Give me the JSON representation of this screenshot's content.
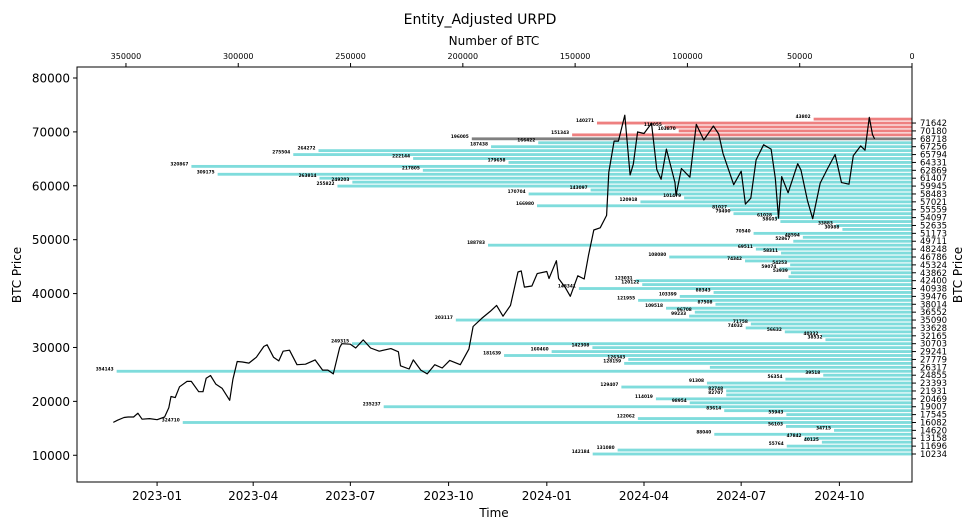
{
  "chart_data": {
    "type": "bar",
    "orientation": "horizontal",
    "title": "Entity_Adjusted URPD",
    "top_xlabel": "Number of BTC",
    "xlabel": "Time",
    "ylabel_left": "BTC Price",
    "ylabel_right": "BTC Price",
    "ylim": [
      5040,
      82040
    ],
    "btc_xlim": [
      371800,
      0
    ],
    "time_xlim": [
      "2022-10-18",
      "2024-12-08"
    ],
    "left_yticks": [
      10000,
      20000,
      30000,
      40000,
      50000,
      60000,
      70000,
      80000
    ],
    "top_xticks": [
      350000,
      300000,
      250000,
      200000,
      150000,
      100000,
      50000,
      0
    ],
    "time_ticks": [
      "2023-01",
      "2023-04",
      "2023-07",
      "2023-10",
      "2024-01",
      "2024-04",
      "2024-07",
      "2024-10"
    ],
    "right_yticks": [
      10234,
      11696,
      13158,
      14620,
      16082,
      17545,
      19007,
      20469,
      21931,
      23393,
      24855,
      26317,
      27779,
      29241,
      30703,
      32165,
      33628,
      35090,
      36552,
      38014,
      39476,
      40938,
      42400,
      43862,
      45324,
      46786,
      48248,
      49711,
      51173,
      52635,
      54097,
      55559,
      57021,
      58483,
      59945,
      61407,
      62869,
      64331,
      65794,
      67256,
      68718,
      70180,
      71642
    ],
    "bins": {
      "start_price": 10234,
      "step": 731.035,
      "current_bin_index": 80,
      "colors": {
        "below": "#7fdcdc",
        "current": "#808080",
        "above": "#ee8080"
      },
      "btc": [
        142184,
        131080,
        55764,
        40125,
        47842,
        88040,
        34715,
        56103,
        324710,
        122062,
        55943,
        83614,
        235237,
        98954,
        114019,
        82707,
        82748,
        129407,
        91308,
        56354,
        39518,
        354143,
        90000,
        128159,
        126343,
        181639,
        160460,
        142308,
        249315,
        38532,
        40332,
        56632,
        74032,
        71758,
        203117,
        99233,
        96708,
        109518,
        87508,
        121955,
        103399,
        88343,
        148341,
        120122,
        123031,
        55000,
        53939,
        59074,
        54253,
        74342,
        108080,
        58311,
        69511,
        188783,
        52867,
        48594,
        70540,
        30988,
        33883,
        58603,
        61028,
        79490,
        81027,
        166980,
        120918,
        101479,
        170704,
        143097,
        255822,
        249203,
        263814,
        309175,
        217805,
        320867,
        179658,
        222144,
        275504,
        264272,
        187438,
        166422,
        196005,
        151343,
        103870,
        110055,
        140271,
        43802
      ],
      "labels": [
        "142184",
        "131080",
        "55764",
        "40125",
        "47842",
        "88040",
        "34715",
        "56103",
        "324710",
        "122062",
        "55943",
        "83614",
        "235237",
        "98954",
        "114019",
        "82707",
        "82748",
        "129407",
        "91308",
        "56354",
        "39518",
        "354143",
        "",
        "128159",
        "126343",
        "181639",
        "160460",
        "142308",
        "249315",
        "38532",
        "40332",
        "56632",
        "74032",
        "71758",
        "203117",
        "99233",
        "96708",
        "109518",
        "87508",
        "121955",
        "103399",
        "88343",
        "148341",
        "120122",
        "123031",
        "",
        "53939",
        "59074",
        "54253",
        "74342",
        "108080",
        "58311",
        "69511",
        "188783",
        "52867",
        "48594",
        "70540",
        "30988",
        "33883",
        "58603",
        "61028",
        "79490",
        "81027",
        "166980",
        "120918",
        "101479",
        "170704",
        "143097",
        "255822",
        "249203",
        "263814",
        "309175",
        "217805",
        "320867",
        "179658",
        "222144",
        "275504",
        "264272",
        "187438",
        "166422",
        "196005",
        "151343",
        "103870",
        "110055",
        "140271",
        "43802"
      ]
    },
    "price_series": {
      "name": "BTC Price",
      "color": "#000000",
      "points": [
        [
          "2022-11-21",
          16100
        ],
        [
          "2022-11-25",
          16500
        ],
        [
          "2022-12-01",
          17000
        ],
        [
          "2022-12-05",
          17100
        ],
        [
          "2022-12-10",
          17100
        ],
        [
          "2022-12-14",
          17800
        ],
        [
          "2022-12-18",
          16700
        ],
        [
          "2022-12-25",
          16800
        ],
        [
          "2023-01-01",
          16600
        ],
        [
          "2023-01-08",
          17100
        ],
        [
          "2023-01-12",
          18800
        ],
        [
          "2023-01-14",
          20900
        ],
        [
          "2023-01-18",
          20700
        ],
        [
          "2023-01-22",
          22700
        ],
        [
          "2023-01-29",
          23700
        ],
        [
          "2023-02-02",
          23700
        ],
        [
          "2023-02-09",
          21800
        ],
        [
          "2023-02-13",
          21800
        ],
        [
          "2023-02-16",
          24300
        ],
        [
          "2023-02-20",
          24800
        ],
        [
          "2023-02-25",
          23200
        ],
        [
          "2023-03-03",
          22400
        ],
        [
          "2023-03-10",
          20200
        ],
        [
          "2023-03-13",
          24100
        ],
        [
          "2023-03-17",
          27400
        ],
        [
          "2023-03-22",
          27300
        ],
        [
          "2023-03-28",
          27100
        ],
        [
          "2023-04-04",
          28200
        ],
        [
          "2023-04-11",
          30200
        ],
        [
          "2023-04-14",
          30500
        ],
        [
          "2023-04-20",
          28200
        ],
        [
          "2023-04-25",
          27500
        ],
        [
          "2023-04-29",
          29300
        ],
        [
          "2023-05-05",
          29500
        ],
        [
          "2023-05-12",
          26800
        ],
        [
          "2023-05-20",
          26900
        ],
        [
          "2023-05-29",
          27700
        ],
        [
          "2023-06-05",
          25800
        ],
        [
          "2023-06-10",
          25800
        ],
        [
          "2023-06-15",
          25100
        ],
        [
          "2023-06-21",
          30000
        ],
        [
          "2023-06-23",
          30700
        ],
        [
          "2023-07-01",
          30600
        ],
        [
          "2023-07-06",
          29900
        ],
        [
          "2023-07-13",
          31400
        ],
        [
          "2023-07-20",
          29900
        ],
        [
          "2023-07-28",
          29300
        ],
        [
          "2023-08-08",
          29800
        ],
        [
          "2023-08-15",
          29200
        ],
        [
          "2023-08-17",
          26600
        ],
        [
          "2023-08-25",
          26000
        ],
        [
          "2023-08-29",
          27700
        ],
        [
          "2023-09-05",
          25800
        ],
        [
          "2023-09-11",
          25100
        ],
        [
          "2023-09-18",
          26800
        ],
        [
          "2023-09-25",
          26200
        ],
        [
          "2023-10-02",
          27600
        ],
        [
          "2023-10-12",
          26800
        ],
        [
          "2023-10-20",
          29700
        ],
        [
          "2023-10-24",
          33900
        ],
        [
          "2023-11-01",
          35400
        ],
        [
          "2023-11-09",
          36700
        ],
        [
          "2023-11-15",
          37800
        ],
        [
          "2023-11-21",
          35800
        ],
        [
          "2023-11-28",
          37800
        ],
        [
          "2023-12-05",
          44000
        ],
        [
          "2023-12-08",
          44200
        ],
        [
          "2023-12-11",
          41200
        ],
        [
          "2023-12-18",
          41400
        ],
        [
          "2023-12-23",
          43700
        ],
        [
          "2024-01-01",
          44100
        ],
        [
          "2024-01-03",
          42800
        ],
        [
          "2024-01-10",
          46100
        ],
        [
          "2024-01-12",
          42800
        ],
        [
          "2024-01-18",
          41200
        ],
        [
          "2024-01-23",
          39500
        ],
        [
          "2024-01-30",
          43300
        ],
        [
          "2024-02-05",
          42700
        ],
        [
          "2024-02-09",
          47100
        ],
        [
          "2024-02-14",
          51800
        ],
        [
          "2024-02-20",
          52200
        ],
        [
          "2024-02-26",
          54500
        ],
        [
          "2024-02-28",
          62500
        ],
        [
          "2024-03-04",
          68300
        ],
        [
          "2024-03-08",
          68300
        ],
        [
          "2024-03-14",
          73100
        ],
        [
          "2024-03-19",
          62000
        ],
        [
          "2024-03-22",
          64000
        ],
        [
          "2024-03-26",
          70000
        ],
        [
          "2024-04-01",
          69700
        ],
        [
          "2024-04-08",
          71600
        ],
        [
          "2024-04-13",
          63000
        ],
        [
          "2024-04-17",
          61200
        ],
        [
          "2024-04-22",
          66800
        ],
        [
          "2024-04-30",
          60600
        ],
        [
          "2024-05-01",
          58200
        ],
        [
          "2024-05-06",
          63200
        ],
        [
          "2024-05-14",
          61600
        ],
        [
          "2024-05-20",
          71400
        ],
        [
          "2024-05-27",
          68500
        ],
        [
          "2024-06-05",
          71100
        ],
        [
          "2024-06-10",
          69600
        ],
        [
          "2024-06-14",
          66000
        ],
        [
          "2024-06-24",
          60200
        ],
        [
          "2024-07-01",
          62700
        ],
        [
          "2024-07-05",
          56600
        ],
        [
          "2024-07-10",
          57700
        ],
        [
          "2024-07-15",
          64800
        ],
        [
          "2024-07-22",
          67600
        ],
        [
          "2024-07-29",
          66800
        ],
        [
          "2024-08-02",
          61400
        ],
        [
          "2024-08-05",
          54000
        ],
        [
          "2024-08-08",
          61700
        ],
        [
          "2024-08-14",
          58700
        ],
        [
          "2024-08-23",
          64100
        ],
        [
          "2024-08-26",
          62900
        ],
        [
          "2024-09-01",
          57300
        ],
        [
          "2024-09-06",
          53900
        ],
        [
          "2024-09-13",
          60500
        ],
        [
          "2024-09-20",
          63200
        ],
        [
          "2024-09-27",
          65800
        ],
        [
          "2024-10-03",
          60600
        ],
        [
          "2024-10-10",
          60300
        ],
        [
          "2024-10-14",
          65600
        ],
        [
          "2024-10-21",
          67400
        ],
        [
          "2024-10-25",
          66600
        ],
        [
          "2024-10-29",
          72700
        ],
        [
          "2024-11-01",
          69500
        ],
        [
          "2024-11-03",
          68700
        ]
      ]
    },
    "grid": false,
    "legend": "none"
  }
}
